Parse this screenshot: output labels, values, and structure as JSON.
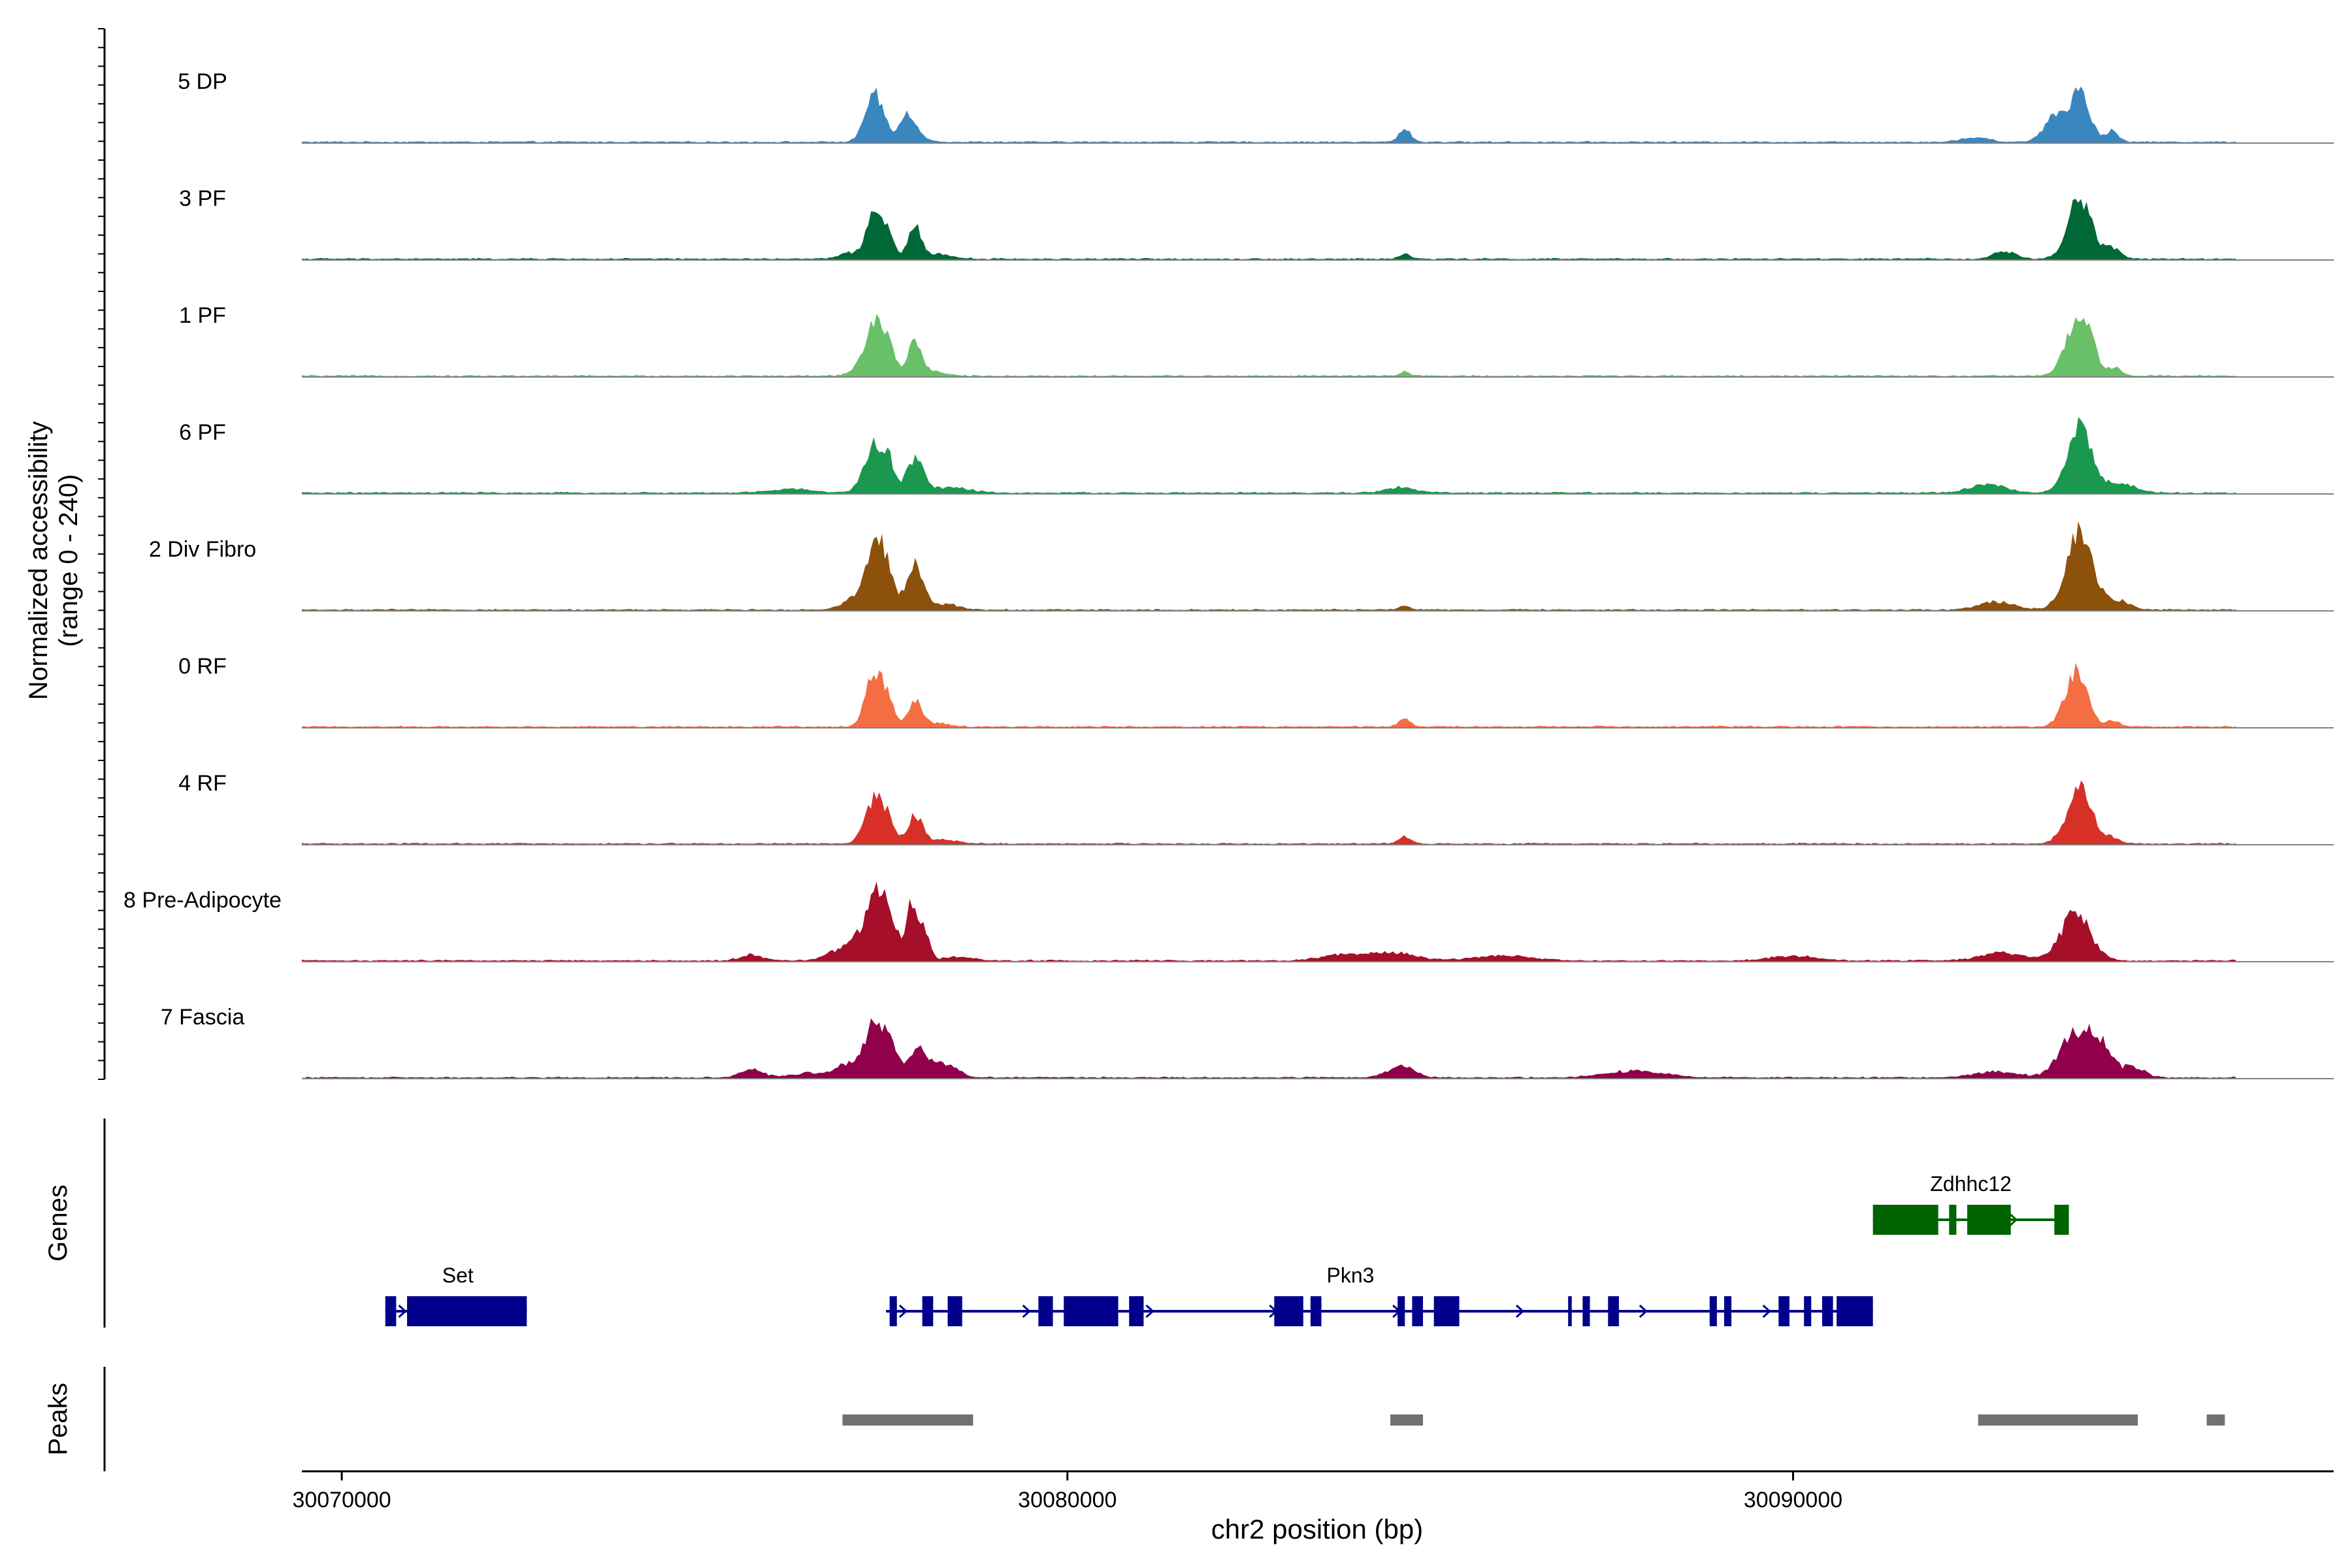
{
  "chart_data": {
    "type": "area",
    "title": "",
    "xlabel": "chr2 position (bp)",
    "ylabel_line1": "Normalized accessibility",
    "ylabel_line2": "(range 0 - 240)",
    "ylim": [
      0,
      240
    ],
    "xlim": [
      30069450,
      30097450
    ],
    "xticks": [
      30070000,
      30080000,
      30090000
    ],
    "xtick_labels": [
      "30070000",
      "30080000",
      "30090000"
    ],
    "track_labels": {
      "genes": "Genes",
      "peaks": "Peaks"
    },
    "series": [
      {
        "name": "5 DP",
        "color": "#3A87C0",
        "peaks": [
          [
            30077350,
            240,
            130
          ],
          [
            30077800,
            140,
            100
          ],
          [
            30077950,
            20,
            150
          ],
          [
            30084650,
            70,
            80
          ],
          [
            30092500,
            25,
            180
          ],
          [
            30093600,
            130,
            150
          ],
          [
            30093950,
            260,
            140
          ],
          [
            30094400,
            60,
            90
          ],
          [
            30097300,
            15,
            40
          ]
        ]
      },
      {
        "name": "3 PF",
        "color": "#006837",
        "peaks": [
          [
            30077000,
            30,
            150
          ],
          [
            30077350,
            250,
            110
          ],
          [
            30077550,
            100,
            80
          ],
          [
            30077900,
            160,
            90
          ],
          [
            30078200,
            25,
            200
          ],
          [
            30084650,
            25,
            80
          ],
          [
            30092900,
            40,
            150
          ],
          [
            30093950,
            320,
            160
          ],
          [
            30094400,
            50,
            120
          ],
          [
            30097300,
            25,
            40
          ]
        ]
      },
      {
        "name": "1 PF",
        "color": "#6ABF69",
        "peaks": [
          [
            30077150,
            30,
            150
          ],
          [
            30077350,
            280,
            130
          ],
          [
            30077550,
            100,
            80
          ],
          [
            30077900,
            180,
            100
          ],
          [
            30078200,
            20,
            150
          ],
          [
            30084650,
            25,
            60
          ],
          [
            30093950,
            330,
            170
          ],
          [
            30094450,
            40,
            80
          ]
        ]
      },
      {
        "name": "6 PF",
        "color": "#1A9850",
        "peaks": [
          [
            30076200,
            20,
            300
          ],
          [
            30077350,
            260,
            140
          ],
          [
            30077550,
            100,
            80
          ],
          [
            30077900,
            180,
            110
          ],
          [
            30078400,
            30,
            250
          ],
          [
            30084600,
            30,
            200
          ],
          [
            30092700,
            45,
            250
          ],
          [
            30093950,
            340,
            170
          ],
          [
            30094500,
            50,
            200
          ],
          [
            30097300,
            30,
            40
          ]
        ]
      },
      {
        "name": "2 Div Fibro",
        "color": "#8C510A",
        "peaks": [
          [
            30077000,
            40,
            150
          ],
          [
            30077350,
            360,
            140
          ],
          [
            30077550,
            110,
            90
          ],
          [
            30077900,
            230,
            110
          ],
          [
            30078300,
            30,
            200
          ],
          [
            30084650,
            20,
            80
          ],
          [
            30092800,
            40,
            250
          ],
          [
            30093950,
            420,
            180
          ],
          [
            30094500,
            50,
            150
          ]
        ]
      },
      {
        "name": "0 RF",
        "color": "#F46D43",
        "peaks": [
          [
            30077350,
            300,
            120
          ],
          [
            30077550,
            90,
            80
          ],
          [
            30077900,
            140,
            90
          ],
          [
            30078200,
            20,
            150
          ],
          [
            30084650,
            40,
            80
          ],
          [
            30093900,
            290,
            150
          ],
          [
            30094400,
            30,
            100
          ],
          [
            30097350,
            20,
            40
          ]
        ]
      },
      {
        "name": "4 RF",
        "color": "#D73027",
        "peaks": [
          [
            30077350,
            240,
            130
          ],
          [
            30077550,
            90,
            80
          ],
          [
            30077900,
            150,
            100
          ],
          [
            30078300,
            20,
            200
          ],
          [
            30084650,
            35,
            80
          ],
          [
            30093950,
            290,
            170
          ],
          [
            30094400,
            30,
            100
          ],
          [
            30097300,
            20,
            40
          ]
        ]
      },
      {
        "name": "8 Pre-Adipocyte",
        "color": "#A50F29",
        "peaks": [
          [
            30075650,
            30,
            150
          ],
          [
            30076900,
            60,
            200
          ],
          [
            30077200,
            150,
            120
          ],
          [
            30077400,
            320,
            100
          ],
          [
            30077600,
            170,
            100
          ],
          [
            30077850,
            280,
            60
          ],
          [
            30078000,
            190,
            80
          ],
          [
            30078500,
            20,
            200
          ],
          [
            30083800,
            30,
            300
          ],
          [
            30084500,
            40,
            300
          ],
          [
            30086000,
            25,
            400
          ],
          [
            30090000,
            25,
            300
          ],
          [
            30092900,
            40,
            300
          ],
          [
            30093900,
            250,
            200
          ],
          [
            30097000,
            20,
            100
          ]
        ]
      },
      {
        "name": "7 Fascia",
        "color": "#91004B",
        "peaks": [
          [
            30075650,
            40,
            150
          ],
          [
            30076500,
            25,
            300
          ],
          [
            30077000,
            70,
            150
          ],
          [
            30077350,
            300,
            130
          ],
          [
            30077600,
            130,
            100
          ],
          [
            30077950,
            150,
            120
          ],
          [
            30078300,
            70,
            180
          ],
          [
            30084600,
            60,
            180
          ],
          [
            30087800,
            35,
            400
          ],
          [
            30092800,
            30,
            300
          ],
          [
            30093850,
            200,
            200
          ],
          [
            30094200,
            180,
            180
          ],
          [
            30094700,
            50,
            150
          ]
        ]
      }
    ],
    "genes": [
      {
        "name": "Set",
        "color": "#00008B",
        "row": 2,
        "start": 30070600,
        "end": 30072550,
        "label_pos": 30071600,
        "exons": [
          [
            30070600,
            30070750
          ],
          [
            30070900,
            30072550
          ]
        ]
      },
      {
        "name": "Pkn3",
        "color": "#00008B",
        "row": 2,
        "start": 30077500,
        "end": 30091100,
        "label_pos": 30083900,
        "exons": [
          [
            30077550,
            30077650
          ],
          [
            30078000,
            30078150
          ],
          [
            30078350,
            30078550
          ],
          [
            30079600,
            30079800
          ],
          [
            30079950,
            30080700
          ],
          [
            30080850,
            30081050
          ],
          [
            30082850,
            30083250
          ],
          [
            30083350,
            30083500
          ],
          [
            30084550,
            30084650
          ],
          [
            30084750,
            30084900
          ],
          [
            30085050,
            30085400
          ],
          [
            30086900,
            30086950
          ],
          [
            30087100,
            30087200
          ],
          [
            30087450,
            30087600
          ],
          [
            30088850,
            30088950
          ],
          [
            30089050,
            30089150
          ],
          [
            30089800,
            30089950
          ],
          [
            30090150,
            30090250
          ],
          [
            30090400,
            30090550
          ],
          [
            30090600,
            30091100
          ]
        ]
      },
      {
        "name": "Zdhhc12",
        "color": "#006400",
        "row": 1,
        "start": 30091100,
        "end": 30093800,
        "label_pos": 30092450,
        "exons": [
          [
            30091100,
            30092000
          ],
          [
            30092150,
            30092250
          ],
          [
            30092400,
            30093000
          ],
          [
            30093600,
            30093800
          ]
        ]
      }
    ],
    "peak_regions": [
      [
        30076900,
        30078700
      ],
      [
        30084450,
        30084900
      ],
      [
        30092550,
        30094750
      ],
      [
        30095700,
        30095950
      ]
    ]
  }
}
